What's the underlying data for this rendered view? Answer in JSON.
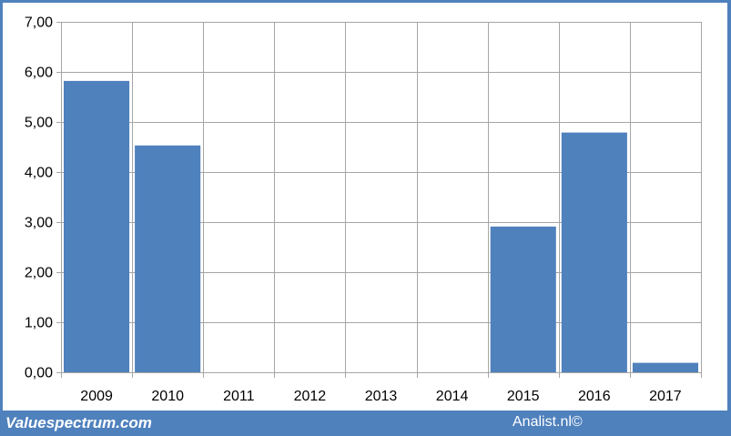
{
  "colors": {
    "frame": "#4f81bd",
    "bar": "#4f81bd",
    "grid": "#a6a6a6",
    "plot_background": "#ffffff"
  },
  "footer": {
    "left": "Valuespectrum.com",
    "right": "Analist.nl©"
  },
  "chart_data": {
    "type": "bar",
    "categories": [
      "2009",
      "2010",
      "2011",
      "2012",
      "2013",
      "2014",
      "2015",
      "2016",
      "2017"
    ],
    "values": [
      5.82,
      4.53,
      0,
      0,
      0,
      0,
      2.91,
      4.79,
      0.19
    ],
    "ylim": [
      0,
      7
    ],
    "yticks": [
      0,
      1,
      2,
      3,
      4,
      5,
      6,
      7
    ],
    "ytick_labels": [
      "0,00",
      "1,00",
      "2,00",
      "3,00",
      "4,00",
      "5,00",
      "6,00",
      "7,00"
    ],
    "grid": true,
    "legend": "none",
    "title": "",
    "xlabel": "",
    "ylabel": ""
  }
}
